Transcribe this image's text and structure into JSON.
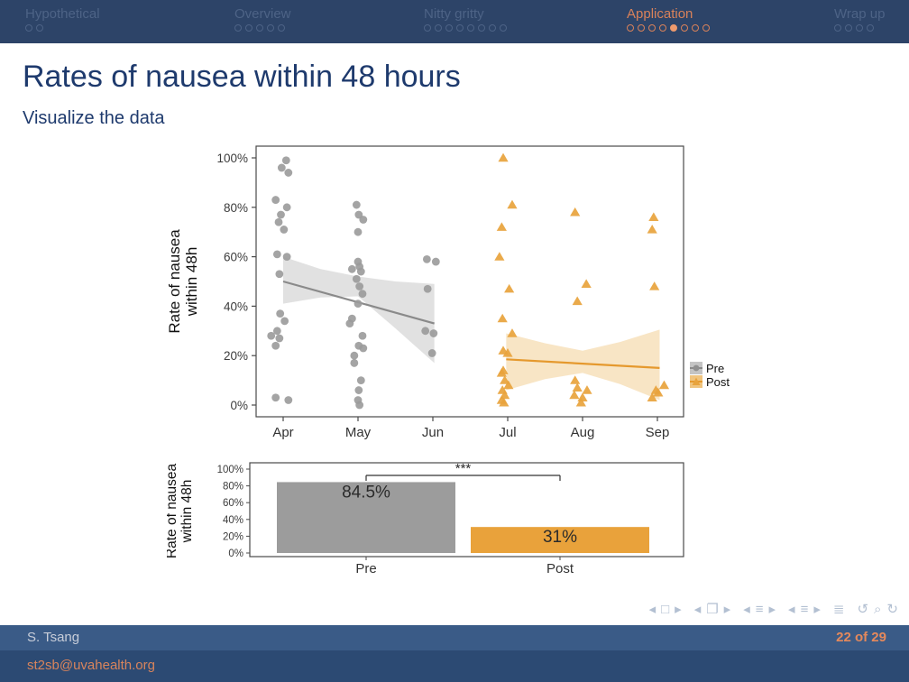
{
  "header": {
    "accent_color": "#d9825a",
    "inactive_color": "#4d6386",
    "filled_dot_color": "#ee9a6d",
    "sections": [
      {
        "label": "Hypothetical",
        "dots": 2,
        "active": false,
        "current_dot": -1
      },
      {
        "label": "Overview",
        "dots": 5,
        "active": false,
        "current_dot": -1
      },
      {
        "label": "Nitty gritty",
        "dots": 8,
        "active": false,
        "current_dot": -1
      },
      {
        "label": "Application",
        "dots": 8,
        "active": true,
        "current_dot": 4
      },
      {
        "label": "Wrap up",
        "dots": 4,
        "active": false,
        "current_dot": -1
      }
    ]
  },
  "slide": {
    "title": "Rates of nausea within 48 hours",
    "subtitle": "Visualize the data"
  },
  "chart_data": [
    {
      "type": "scatter",
      "title": "",
      "xlabel": "",
      "ylabel_lines": [
        "Rate of nausea",
        "within 48h"
      ],
      "x_tick_labels": [
        "Apr",
        "May",
        "Jun",
        "Jul",
        "Aug",
        "Sep"
      ],
      "y_tick_values": [
        0,
        20,
        40,
        60,
        80,
        100
      ],
      "y_tick_labels": [
        "0%",
        "20%",
        "40%",
        "60%",
        "80%",
        "100%"
      ],
      "ylim": [
        0,
        100
      ],
      "grid": false,
      "legend_position": "right",
      "series": [
        {
          "name": "Pre",
          "marker": "circle",
          "color": "#9a9a9a",
          "line_color": "#8a8a8a",
          "band_color": "#c9c9c9",
          "points": [
            [
              0.04,
              99
            ],
            [
              -0.02,
              96
            ],
            [
              0.07,
              94
            ],
            [
              -0.1,
              83
            ],
            [
              0.05,
              80
            ],
            [
              -0.03,
              77
            ],
            [
              -0.06,
              74
            ],
            [
              0.01,
              71
            ],
            [
              -0.08,
              61
            ],
            [
              0.05,
              60
            ],
            [
              -0.05,
              53
            ],
            [
              -0.04,
              37
            ],
            [
              0.02,
              34
            ],
            [
              -0.08,
              30
            ],
            [
              -0.16,
              28
            ],
            [
              -0.05,
              27
            ],
            [
              -0.1,
              24
            ],
            [
              -0.1,
              3
            ],
            [
              0.07,
              2
            ],
            [
              0.98,
              81
            ],
            [
              1.01,
              77
            ],
            [
              1.07,
              75
            ],
            [
              1.0,
              70
            ],
            [
              1.0,
              58
            ],
            [
              1.02,
              56
            ],
            [
              0.92,
              55
            ],
            [
              1.04,
              54
            ],
            [
              0.98,
              51
            ],
            [
              1.02,
              48
            ],
            [
              1.06,
              45
            ],
            [
              1.0,
              41
            ],
            [
              0.92,
              35
            ],
            [
              0.89,
              33
            ],
            [
              1.06,
              28
            ],
            [
              1.01,
              24
            ],
            [
              1.07,
              23
            ],
            [
              0.95,
              20
            ],
            [
              0.95,
              17
            ],
            [
              1.04,
              10
            ],
            [
              1.01,
              6
            ],
            [
              1.0,
              2
            ],
            [
              1.02,
              0
            ],
            [
              1.92,
              59
            ],
            [
              2.04,
              58
            ],
            [
              1.93,
              47
            ],
            [
              1.9,
              30
            ],
            [
              2.01,
              29
            ],
            [
              1.99,
              21
            ]
          ],
          "trend_line": [
            [
              0,
              50
            ],
            [
              2.02,
              33
            ]
          ],
          "band_x": [
            0,
            0.5,
            1,
            1.5,
            2.02
          ],
          "band_upper": [
            60,
            55,
            52,
            50,
            49
          ],
          "band_lower": [
            41,
            43.5,
            44,
            31,
            17
          ]
        },
        {
          "name": "Post",
          "marker": "triangle",
          "color": "#e8a33c",
          "line_color": "#e5992e",
          "band_color": "#f3cf96",
          "points": [
            [
              2.94,
              100
            ],
            [
              3.06,
              81
            ],
            [
              2.92,
              72
            ],
            [
              2.89,
              60
            ],
            [
              3.02,
              47
            ],
            [
              2.93,
              35
            ],
            [
              3.06,
              29
            ],
            [
              2.94,
              22
            ],
            [
              3.0,
              21
            ],
            [
              2.94,
              14
            ],
            [
              2.92,
              13
            ],
            [
              2.96,
              10
            ],
            [
              3.01,
              8
            ],
            [
              2.93,
              6
            ],
            [
              2.96,
              4
            ],
            [
              2.92,
              2
            ],
            [
              2.95,
              1
            ],
            [
              3.9,
              78
            ],
            [
              4.05,
              49
            ],
            [
              3.93,
              42
            ],
            [
              3.9,
              10
            ],
            [
              3.93,
              7
            ],
            [
              4.06,
              6
            ],
            [
              3.89,
              4
            ],
            [
              4.0,
              3
            ],
            [
              3.98,
              1
            ],
            [
              4.95,
              76
            ],
            [
              4.93,
              71
            ],
            [
              4.96,
              48
            ],
            [
              5.09,
              8
            ],
            [
              4.98,
              6
            ],
            [
              5.01,
              5
            ],
            [
              4.93,
              3
            ]
          ],
          "trend_line": [
            [
              2.98,
              18.5
            ],
            [
              5.03,
              15
            ]
          ],
          "band_x": [
            2.98,
            3.5,
            4,
            4.5,
            5.03
          ],
          "band_upper": [
            29,
            25,
            22,
            25.5,
            30.5
          ],
          "band_lower": [
            6,
            10.5,
            13,
            8.5,
            2
          ]
        }
      ],
      "legend": [
        "Pre",
        "Post"
      ]
    },
    {
      "type": "bar",
      "title": "",
      "xlabel": "",
      "ylabel_lines": [
        "Rate of nausea",
        "within 48h"
      ],
      "categories": [
        "Pre",
        "Post"
      ],
      "values": [
        84.5,
        31
      ],
      "value_labels": [
        "84.5%",
        "31%"
      ],
      "colors": [
        "#9c9c9c",
        "#e9a23b"
      ],
      "y_tick_values": [
        0,
        20,
        40,
        60,
        80,
        100
      ],
      "y_tick_labels": [
        "0%",
        "20%",
        "40%",
        "60%",
        "80%",
        "100%"
      ],
      "ylim": [
        0,
        100
      ],
      "grid": false,
      "significance_label": "***"
    }
  ],
  "nav_groups": [
    [
      "prev",
      "slide",
      "next"
    ],
    [
      "prev",
      "frames",
      "next"
    ],
    [
      "prev",
      "subsection",
      "next"
    ],
    [
      "prev",
      "section",
      "next"
    ],
    [
      "appendix"
    ],
    [
      "undo",
      "search",
      "redo"
    ]
  ],
  "footer": {
    "author": "S. Tsang",
    "email": "st2sb@uvahealth.org",
    "page": "22 of 29"
  },
  "colors": {
    "header_bg": "#2d4468",
    "footer_bar1_bg": "#3a5b87",
    "footer_bar2_bg": "#2c4a73",
    "title_color": "#1e3a6d",
    "pre_gray": "#9a9a9a",
    "post_orange": "#e8a33c",
    "accent_orange": "#d9825a"
  }
}
